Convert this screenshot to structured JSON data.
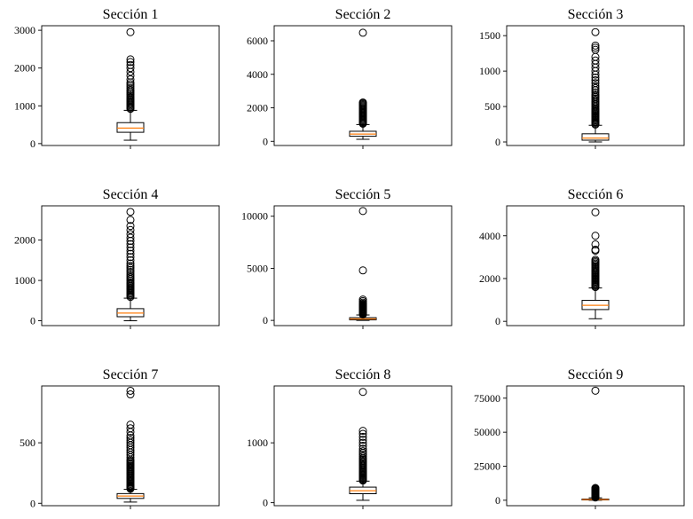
{
  "chart_data": [
    {
      "type": "box",
      "title": "Sección 1",
      "ylim": [
        -50,
        3120
      ],
      "yticks": [
        0,
        1000,
        2000,
        3000
      ],
      "tick_labels": [
        "0",
        "1000",
        "2000",
        "3000"
      ],
      "stats": {
        "whislo": 90,
        "q1": 300,
        "med": 410,
        "q3": 555,
        "whishi": 880
      },
      "fliers": [
        920,
        950,
        980,
        1010,
        1040,
        1070,
        1100,
        1130,
        1160,
        1190,
        1220,
        1260,
        1300,
        1340,
        1380,
        1420,
        1470,
        1520,
        1570,
        1620,
        1700,
        1800,
        1900,
        2000,
        2080,
        2160,
        2230,
        2950
      ]
    },
    {
      "type": "box",
      "title": "Sección 2",
      "ylim": [
        -250,
        6900
      ],
      "yticks": [
        0,
        2000,
        4000,
        6000
      ],
      "tick_labels": [
        "0",
        "2000",
        "4000",
        "6000"
      ],
      "stats": {
        "whislo": 120,
        "q1": 300,
        "med": 430,
        "q3": 600,
        "whishi": 1000
      },
      "fliers": [
        1050,
        1100,
        1150,
        1200,
        1260,
        1320,
        1380,
        1440,
        1500,
        1560,
        1620,
        1680,
        1740,
        1800,
        1860,
        1920,
        1980,
        2040,
        2100,
        2160,
        2220,
        2280,
        2320,
        6480
      ]
    },
    {
      "type": "box",
      "title": "Sección 3",
      "ylim": [
        -50,
        1640
      ],
      "yticks": [
        0,
        500,
        1000,
        1500
      ],
      "tick_labels": [
        "0",
        "500",
        "1000",
        "1500"
      ],
      "stats": {
        "whislo": 0,
        "q1": 25,
        "med": 55,
        "q3": 115,
        "whishi": 235
      },
      "fliers": [
        245,
        260,
        275,
        290,
        305,
        320,
        335,
        350,
        365,
        380,
        395,
        410,
        425,
        440,
        455,
        470,
        490,
        510,
        530,
        550,
        570,
        590,
        610,
        630,
        650,
        670,
        700,
        730,
        760,
        790,
        830,
        870,
        910,
        950,
        1000,
        1050,
        1100,
        1150,
        1200,
        1300,
        1330,
        1360,
        1550
      ]
    },
    {
      "type": "box",
      "title": "Sección 4",
      "ylim": [
        -120,
        2850
      ],
      "yticks": [
        0,
        1000,
        2000
      ],
      "tick_labels": [
        "0",
        "1000",
        "2000"
      ],
      "stats": {
        "whislo": 0,
        "q1": 100,
        "med": 190,
        "q3": 300,
        "whishi": 560
      },
      "fliers": [
        590,
        620,
        650,
        680,
        710,
        740,
        770,
        800,
        830,
        860,
        890,
        920,
        950,
        990,
        1030,
        1070,
        1110,
        1160,
        1210,
        1260,
        1310,
        1360,
        1420,
        1500,
        1580,
        1660,
        1740,
        1820,
        1900,
        1980,
        2060,
        2150,
        2250,
        2350,
        2500,
        2700
      ]
    },
    {
      "type": "box",
      "title": "Sección 5",
      "ylim": [
        -500,
        11000
      ],
      "yticks": [
        0,
        5000,
        10000
      ],
      "tick_labels": [
        "0",
        "5000",
        "10000"
      ],
      "stats": {
        "whislo": 0,
        "q1": 50,
        "med": 140,
        "q3": 260,
        "whishi": 520
      },
      "fliers": [
        560,
        620,
        680,
        740,
        800,
        860,
        920,
        980,
        1040,
        1100,
        1160,
        1220,
        1280,
        1340,
        1400,
        1460,
        1520,
        1600,
        1700,
        1850,
        2000,
        4800,
        10500
      ]
    },
    {
      "type": "box",
      "title": "Sección 6",
      "ylim": [
        -200,
        5400
      ],
      "yticks": [
        0,
        2000,
        4000
      ],
      "tick_labels": [
        "0",
        "2000",
        "4000"
      ],
      "stats": {
        "whislo": 120,
        "q1": 550,
        "med": 750,
        "q3": 980,
        "whishi": 1560
      },
      "fliers": [
        1600,
        1650,
        1700,
        1750,
        1800,
        1850,
        1900,
        1950,
        2000,
        2050,
        2100,
        2150,
        2200,
        2250,
        2300,
        2350,
        2400,
        2460,
        2520,
        2580,
        2640,
        2700,
        2760,
        2820,
        2880,
        3300,
        3350,
        3600,
        4000,
        5100
      ]
    },
    {
      "type": "box",
      "title": "Sección 7",
      "ylim": [
        -20,
        970
      ],
      "yticks": [
        0,
        500
      ],
      "tick_labels": [
        "0",
        "500"
      ],
      "stats": {
        "whislo": 10,
        "q1": 40,
        "med": 60,
        "q3": 80,
        "whishi": 115
      },
      "fliers": [
        120,
        125,
        130,
        135,
        140,
        145,
        150,
        160,
        170,
        180,
        190,
        200,
        210,
        220,
        230,
        240,
        250,
        260,
        270,
        280,
        290,
        300,
        310,
        320,
        330,
        340,
        350,
        360,
        380,
        400,
        420,
        440,
        460,
        480,
        500,
        520,
        540,
        560,
        590,
        620,
        650,
        900,
        930
      ]
    },
    {
      "type": "box",
      "title": "Sección 8",
      "ylim": [
        -50,
        1950
      ],
      "yticks": [
        0,
        1000
      ],
      "tick_labels": [
        "0",
        "1000"
      ],
      "stats": {
        "whislo": 40,
        "q1": 150,
        "med": 200,
        "q3": 260,
        "whishi": 360
      },
      "fliers": [
        370,
        385,
        400,
        415,
        430,
        445,
        460,
        475,
        490,
        505,
        520,
        540,
        560,
        580,
        600,
        620,
        640,
        660,
        680,
        700,
        720,
        740,
        770,
        800,
        830,
        860,
        900,
        950,
        1000,
        1050,
        1100,
        1150,
        1200,
        1850
      ]
    },
    {
      "type": "box",
      "title": "Sección 9",
      "ylim": [
        -4000,
        84000
      ],
      "yticks": [
        0,
        25000,
        50000,
        75000
      ],
      "tick_labels": [
        "0",
        "25000",
        "50000",
        "75000"
      ],
      "stats": {
        "whislo": 0,
        "q1": 200,
        "med": 500,
        "q3": 900,
        "whishi": 1800
      },
      "fliers": [
        2000,
        2200,
        2500,
        2800,
        3100,
        3400,
        3700,
        4000,
        4400,
        4800,
        5200,
        5600,
        6000,
        6500,
        7000,
        7500,
        8000,
        8500,
        9000,
        80500
      ]
    }
  ]
}
